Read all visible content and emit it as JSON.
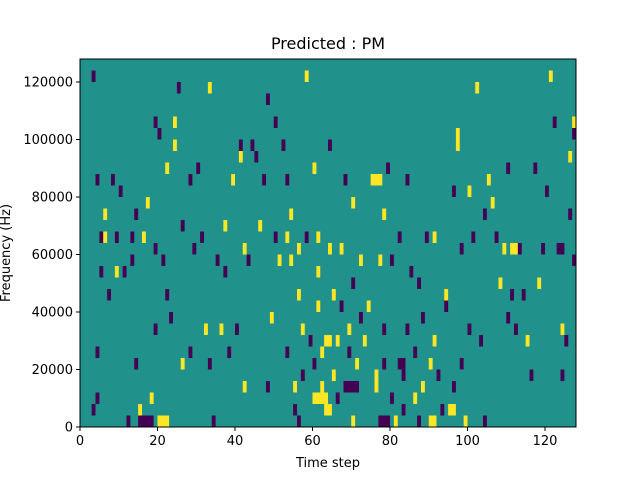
{
  "chart_data": {
    "type": "heatmap",
    "title": "Predicted : PM",
    "xlabel": "Time step",
    "ylabel": "Frequency (Hz)",
    "xlim": [
      0,
      128
    ],
    "ylim": [
      0,
      128000
    ],
    "xticks": [
      0,
      20,
      40,
      60,
      80,
      100,
      120
    ],
    "yticks": [
      0,
      20000,
      40000,
      60000,
      80000,
      100000,
      120000
    ],
    "xtick_labels": [
      "0",
      "20",
      "40",
      "60",
      "80",
      "100",
      "120"
    ],
    "ytick_labels": [
      "0",
      "20000",
      "40000",
      "60000",
      "80000",
      "100000",
      "120000"
    ],
    "colormap": "viridis",
    "colors": {
      "background": "#21918c",
      "low": "#440154",
      "high": "#fde725"
    },
    "cell_height_hz": 4000,
    "notes": "Sparse spectrogram-like binary mask: mostly mid value (teal), scattered low (purple) and high (yellow) cells. Approximate cells listed as [time_step_start, freq_start_hz, width_steps, level].",
    "cells": [
      [
        3,
        120000,
        1,
        "low"
      ],
      [
        3,
        4000,
        1,
        "low"
      ],
      [
        4,
        8000,
        1,
        "low"
      ],
      [
        4,
        84000,
        1,
        "low"
      ],
      [
        4,
        24000,
        1,
        "low"
      ],
      [
        5,
        64000,
        1,
        "low"
      ],
      [
        5,
        52000,
        1,
        "low"
      ],
      [
        6,
        72000,
        1,
        "high"
      ],
      [
        6,
        64000,
        1,
        "high"
      ],
      [
        7,
        44000,
        1,
        "low"
      ],
      [
        8,
        84000,
        1,
        "low"
      ],
      [
        9,
        52000,
        1,
        "high"
      ],
      [
        9,
        64000,
        1,
        "low"
      ],
      [
        10,
        80000,
        1,
        "low"
      ],
      [
        11,
        52000,
        1,
        "low"
      ],
      [
        12,
        0,
        1,
        "low"
      ],
      [
        13,
        64000,
        1,
        "low"
      ],
      [
        13,
        56000,
        1,
        "low"
      ],
      [
        14,
        72000,
        1,
        "low"
      ],
      [
        14,
        20000,
        1,
        "low"
      ],
      [
        15,
        0,
        4,
        "low"
      ],
      [
        15,
        4000,
        1,
        "high"
      ],
      [
        16,
        64000,
        1,
        "high"
      ],
      [
        17,
        76000,
        1,
        "high"
      ],
      [
        18,
        8000,
        1,
        "high"
      ],
      [
        19,
        60000,
        1,
        "low"
      ],
      [
        19,
        104000,
        1,
        "low"
      ],
      [
        19,
        32000,
        1,
        "low"
      ],
      [
        20,
        100000,
        1,
        "low"
      ],
      [
        20,
        0,
        3,
        "high"
      ],
      [
        21,
        56000,
        1,
        "low"
      ],
      [
        22,
        44000,
        1,
        "low"
      ],
      [
        22,
        88000,
        1,
        "high"
      ],
      [
        23,
        36000,
        1,
        "low"
      ],
      [
        24,
        96000,
        1,
        "high"
      ],
      [
        24,
        104000,
        1,
        "high"
      ],
      [
        25,
        116000,
        1,
        "low"
      ],
      [
        26,
        68000,
        1,
        "low"
      ],
      [
        26,
        20000,
        1,
        "high"
      ],
      [
        28,
        24000,
        1,
        "low"
      ],
      [
        28,
        84000,
        1,
        "low"
      ],
      [
        29,
        60000,
        1,
        "low"
      ],
      [
        30,
        88000,
        1,
        "low"
      ],
      [
        31,
        64000,
        1,
        "low"
      ],
      [
        32,
        32000,
        1,
        "high"
      ],
      [
        33,
        20000,
        1,
        "low"
      ],
      [
        33,
        116000,
        1,
        "high"
      ],
      [
        34,
        0,
        1,
        "low"
      ],
      [
        35,
        56000,
        1,
        "low"
      ],
      [
        36,
        32000,
        1,
        "high"
      ],
      [
        37,
        68000,
        1,
        "high"
      ],
      [
        37,
        52000,
        1,
        "low"
      ],
      [
        38,
        24000,
        1,
        "low"
      ],
      [
        39,
        84000,
        1,
        "high"
      ],
      [
        40,
        32000,
        1,
        "low"
      ],
      [
        41,
        92000,
        1,
        "high"
      ],
      [
        41,
        96000,
        1,
        "low"
      ],
      [
        42,
        12000,
        1,
        "high"
      ],
      [
        42,
        60000,
        1,
        "high"
      ],
      [
        43,
        56000,
        1,
        "low"
      ],
      [
        44,
        96000,
        1,
        "low"
      ],
      [
        45,
        92000,
        1,
        "low"
      ],
      [
        46,
        68000,
        1,
        "high"
      ],
      [
        47,
        84000,
        1,
        "low"
      ],
      [
        48,
        12000,
        1,
        "low"
      ],
      [
        48,
        112000,
        1,
        "low"
      ],
      [
        49,
        36000,
        1,
        "high"
      ],
      [
        50,
        64000,
        1,
        "low"
      ],
      [
        50,
        104000,
        1,
        "low"
      ],
      [
        51,
        56000,
        1,
        "high"
      ],
      [
        52,
        96000,
        1,
        "low"
      ],
      [
        53,
        84000,
        1,
        "low"
      ],
      [
        53,
        64000,
        1,
        "high"
      ],
      [
        53,
        24000,
        1,
        "low"
      ],
      [
        54,
        72000,
        1,
        "high"
      ],
      [
        54,
        56000,
        1,
        "high"
      ],
      [
        55,
        4000,
        1,
        "low"
      ],
      [
        55,
        12000,
        1,
        "high"
      ],
      [
        56,
        0,
        1,
        "low"
      ],
      [
        56,
        60000,
        1,
        "high"
      ],
      [
        56,
        44000,
        1,
        "high"
      ],
      [
        57,
        32000,
        1,
        "high"
      ],
      [
        57,
        16000,
        1,
        "low"
      ],
      [
        58,
        64000,
        1,
        "low"
      ],
      [
        58,
        120000,
        1,
        "high"
      ],
      [
        59,
        28000,
        1,
        "low"
      ],
      [
        60,
        8000,
        4,
        "high"
      ],
      [
        60,
        88000,
        1,
        "high"
      ],
      [
        60,
        20000,
        1,
        "low"
      ],
      [
        61,
        52000,
        1,
        "high"
      ],
      [
        61,
        40000,
        1,
        "high"
      ],
      [
        61,
        64000,
        1,
        "high"
      ],
      [
        62,
        12000,
        1,
        "high"
      ],
      [
        62,
        24000,
        1,
        "high"
      ],
      [
        63,
        28000,
        2,
        "high"
      ],
      [
        63,
        4000,
        2,
        "high"
      ],
      [
        64,
        60000,
        1,
        "high"
      ],
      [
        64,
        96000,
        1,
        "low"
      ],
      [
        65,
        44000,
        1,
        "high"
      ],
      [
        65,
        16000,
        1,
        "high"
      ],
      [
        66,
        8000,
        1,
        "low"
      ],
      [
        66,
        28000,
        1,
        "high"
      ],
      [
        67,
        40000,
        1,
        "low"
      ],
      [
        67,
        60000,
        1,
        "high"
      ],
      [
        68,
        12000,
        4,
        "low"
      ],
      [
        68,
        84000,
        1,
        "low"
      ],
      [
        69,
        32000,
        1,
        "high"
      ],
      [
        69,
        24000,
        1,
        "low"
      ],
      [
        70,
        76000,
        1,
        "high"
      ],
      [
        70,
        48000,
        1,
        "low"
      ],
      [
        70,
        0,
        1,
        "high"
      ],
      [
        71,
        20000,
        1,
        "high"
      ],
      [
        72,
        56000,
        1,
        "high"
      ],
      [
        72,
        36000,
        1,
        "low"
      ],
      [
        73,
        28000,
        1,
        "high"
      ],
      [
        74,
        40000,
        1,
        "high"
      ],
      [
        75,
        84000,
        3,
        "high"
      ],
      [
        76,
        16000,
        1,
        "high"
      ],
      [
        76,
        12000,
        1,
        "high"
      ],
      [
        77,
        0,
        3,
        "low"
      ],
      [
        77,
        56000,
        1,
        "high"
      ],
      [
        78,
        20000,
        1,
        "low"
      ],
      [
        78,
        72000,
        1,
        "high"
      ],
      [
        78,
        32000,
        1,
        "low"
      ],
      [
        79,
        88000,
        1,
        "low"
      ],
      [
        80,
        8000,
        1,
        "low"
      ],
      [
        80,
        56000,
        1,
        "low"
      ],
      [
        81,
        0,
        1,
        "high"
      ],
      [
        82,
        20000,
        2,
        "low"
      ],
      [
        82,
        64000,
        1,
        "low"
      ],
      [
        83,
        16000,
        1,
        "low"
      ],
      [
        83,
        4000,
        1,
        "low"
      ],
      [
        84,
        84000,
        1,
        "low"
      ],
      [
        84,
        32000,
        1,
        "low"
      ],
      [
        85,
        52000,
        1,
        "low"
      ],
      [
        86,
        24000,
        1,
        "low"
      ],
      [
        86,
        8000,
        1,
        "high"
      ],
      [
        87,
        0,
        1,
        "low"
      ],
      [
        87,
        48000,
        1,
        "low"
      ],
      [
        88,
        12000,
        1,
        "high"
      ],
      [
        88,
        36000,
        1,
        "low"
      ],
      [
        89,
        64000,
        1,
        "low"
      ],
      [
        90,
        20000,
        1,
        "high"
      ],
      [
        90,
        0,
        2,
        "high"
      ],
      [
        91,
        28000,
        1,
        "high"
      ],
      [
        91,
        64000,
        1,
        "high"
      ],
      [
        92,
        16000,
        1,
        "low"
      ],
      [
        93,
        4000,
        1,
        "low"
      ],
      [
        94,
        40000,
        1,
        "low"
      ],
      [
        94,
        44000,
        1,
        "high"
      ],
      [
        95,
        4000,
        2,
        "high"
      ],
      [
        96,
        12000,
        1,
        "low"
      ],
      [
        96,
        80000,
        1,
        "low"
      ],
      [
        97,
        96000,
        1,
        "high"
      ],
      [
        97,
        100000,
        1,
        "high"
      ],
      [
        98,
        20000,
        1,
        "low"
      ],
      [
        98,
        60000,
        1,
        "low"
      ],
      [
        99,
        0,
        1,
        "high"
      ],
      [
        100,
        32000,
        1,
        "low"
      ],
      [
        100,
        80000,
        1,
        "high"
      ],
      [
        101,
        64000,
        1,
        "low"
      ],
      [
        102,
        116000,
        1,
        "high"
      ],
      [
        103,
        28000,
        1,
        "low"
      ],
      [
        104,
        0,
        1,
        "low"
      ],
      [
        104,
        72000,
        1,
        "low"
      ],
      [
        105,
        84000,
        1,
        "high"
      ],
      [
        106,
        76000,
        1,
        "high"
      ],
      [
        107,
        64000,
        1,
        "low"
      ],
      [
        108,
        48000,
        1,
        "high"
      ],
      [
        109,
        60000,
        1,
        "high"
      ],
      [
        110,
        36000,
        1,
        "low"
      ],
      [
        110,
        88000,
        1,
        "low"
      ],
      [
        111,
        60000,
        2,
        "high"
      ],
      [
        111,
        44000,
        1,
        "low"
      ],
      [
        112,
        32000,
        1,
        "low"
      ],
      [
        113,
        60000,
        1,
        "low"
      ],
      [
        114,
        44000,
        1,
        "low"
      ],
      [
        115,
        28000,
        1,
        "high"
      ],
      [
        116,
        16000,
        1,
        "low"
      ],
      [
        117,
        88000,
        1,
        "low"
      ],
      [
        118,
        48000,
        1,
        "high"
      ],
      [
        119,
        60000,
        1,
        "low"
      ],
      [
        120,
        80000,
        1,
        "low"
      ],
      [
        121,
        120000,
        1,
        "high"
      ],
      [
        122,
        104000,
        1,
        "low"
      ],
      [
        123,
        60000,
        2,
        "low"
      ],
      [
        124,
        32000,
        1,
        "high"
      ],
      [
        124,
        16000,
        1,
        "low"
      ],
      [
        125,
        28000,
        1,
        "low"
      ],
      [
        126,
        72000,
        1,
        "low"
      ],
      [
        126,
        92000,
        1,
        "high"
      ],
      [
        127,
        56000,
        1,
        "low"
      ],
      [
        127,
        104000,
        1,
        "high"
      ],
      [
        127,
        100000,
        1,
        "low"
      ]
    ]
  }
}
